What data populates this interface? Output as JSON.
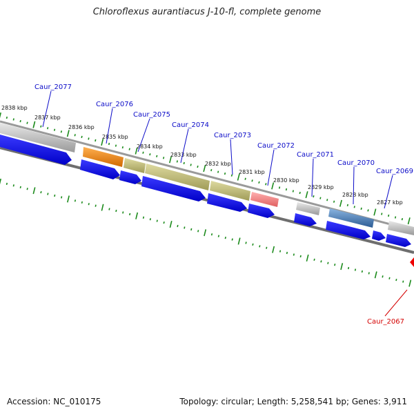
{
  "title": "Chloroflexus aurantiacus J-10-fl, complete genome",
  "footer": {
    "accession": "Accession: NC_010175",
    "summary": "Topology: circular; Length: 5,258,541 bp; Genes: 3,911"
  },
  "colors": {
    "backbone": "#7a7a7a",
    "cds_arrow": "#0000ee",
    "tick": "#1a8a1a",
    "label_blue": "#0a0ac8",
    "label_red": "#d40000"
  },
  "kbp_labels": [
    "2838 kbp",
    "2837 kbp",
    "2836 kbp",
    "2835 kbp",
    "2834 kbp",
    "2833 kbp",
    "2832 kbp",
    "2831 kbp",
    "2830 kbp",
    "2829 kbp",
    "2828 kbp",
    "2827 kbp"
  ],
  "genes": [
    {
      "label": "Caur_2077",
      "feature_color": "#b8b8b8"
    },
    {
      "label": "Caur_2076",
      "feature_color": "#f08a10"
    },
    {
      "label": "Caur_2075",
      "feature_color": "#c2be78"
    },
    {
      "label": "Caur_2074",
      "feature_color": "#b8b468"
    },
    {
      "label": "Caur_2073",
      "feature_color": "#c2be78"
    },
    {
      "label": "Caur_2072",
      "feature_color": "#f08a8a"
    },
    {
      "label": "Caur_2071",
      "feature_color": "#b8b8b8"
    },
    {
      "label": "Caur_2070",
      "feature_color": "#4a80b8"
    },
    {
      "label": "Caur_2069",
      "feature_color": "#b8b8b8"
    },
    {
      "label": "Caur_2067",
      "feature_color": "#ee0000"
    }
  ]
}
